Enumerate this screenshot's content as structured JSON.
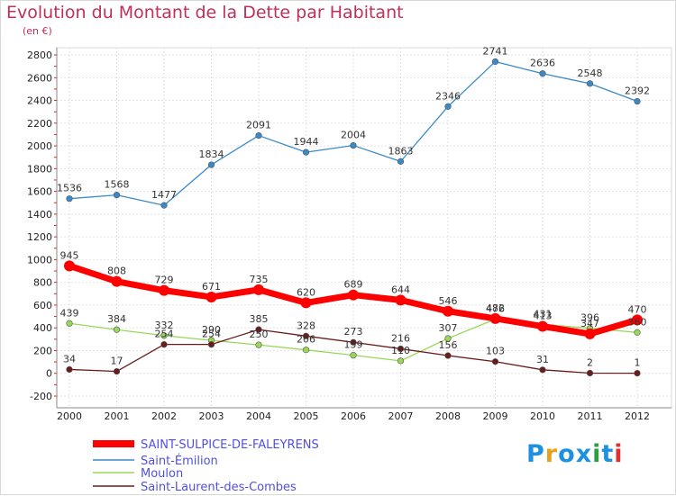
{
  "title": "Evolution du Montant de la Dette par Habitant",
  "subtitle": "(en €)",
  "logo": {
    "text": "Proxiti",
    "colors": [
      "#1e90e0",
      "#e8a020",
      "#1e90e0",
      "#1e90e0",
      "#2aa040",
      "#1e90e0",
      "#e03030"
    ]
  },
  "chart_data": {
    "type": "line",
    "x": [
      2000,
      2001,
      2002,
      2003,
      2004,
      2005,
      2006,
      2007,
      2008,
      2009,
      2010,
      2011,
      2012
    ],
    "ylim": [
      -200,
      2800
    ],
    "yticks": [
      -200,
      0,
      200,
      400,
      600,
      800,
      1000,
      1200,
      1400,
      1600,
      1800,
      2000,
      2200,
      2400,
      2600,
      2800
    ],
    "grid": true,
    "legend_position": "bottom",
    "series": [
      {
        "name": "SAINT-SULPICE-DE-FALEYRENS",
        "color": "#ff0000",
        "legend_color": "#5050e0",
        "values": [
          945,
          808,
          729,
          671,
          735,
          620,
          689,
          644,
          546,
          482,
          413,
          347,
          470
        ]
      },
      {
        "name": "Saint-Émilion",
        "color": "#3a8ac8",
        "legend_color": "#5050e0",
        "values": [
          1536,
          1568,
          1477,
          1834,
          2091,
          1944,
          2004,
          1863,
          2346,
          2741,
          2636,
          2548,
          2392
        ]
      },
      {
        "name": "Moulon",
        "color": "#98d858",
        "legend_color": "#5050e0",
        "values": [
          439,
          384,
          332,
          290,
          250,
          206,
          159,
          110,
          307,
          476,
          431,
          396,
          360
        ]
      },
      {
        "name": "Saint-Laurent-des-Combes",
        "color": "#6a1c1c",
        "legend_color": "#5050e0",
        "values": [
          34,
          17,
          254,
          254,
          385,
          328,
          273,
          216,
          156,
          103,
          31,
          2,
          1
        ]
      }
    ]
  }
}
